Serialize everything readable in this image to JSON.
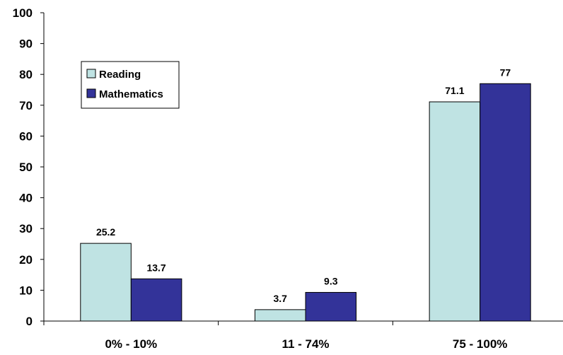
{
  "chart_data": {
    "type": "bar",
    "title": "",
    "xlabel": "",
    "ylabel": "",
    "categories": [
      "0% - 10%",
      "11 - 74%",
      "75 - 100%"
    ],
    "series": [
      {
        "name": "Reading",
        "values": [
          25.2,
          3.7,
          71.1
        ],
        "labels": [
          "25.2",
          "3.7",
          "71.1"
        ],
        "color": "#bfe3e3"
      },
      {
        "name": "Mathematics",
        "values": [
          13.7,
          9.3,
          77
        ],
        "labels": [
          "13.7",
          "9.3",
          "77"
        ],
        "color": "#333399"
      }
    ],
    "ylim": [
      0,
      100
    ],
    "yticks": [
      "0",
      "10",
      "20",
      "30",
      "40",
      "50",
      "60",
      "70",
      "80",
      "90",
      "100"
    ],
    "grid": false,
    "legend_position": "upper-left",
    "bar_outline": "#000000"
  }
}
